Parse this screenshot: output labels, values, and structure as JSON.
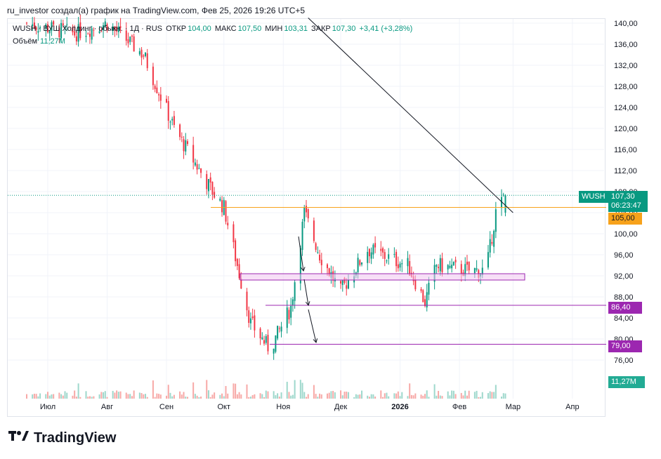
{
  "caption": "ru_investor создал(а) график на TradingView.com, Фев 25, 2026 19:26 UTC+5",
  "legend": {
    "symbol_line": "WUSH · ВУШ Холдинг · обыкн. · 1Д · RUS",
    "open_label": "ОТКР",
    "open": "104,00",
    "high_label": "МАКС",
    "high": "107,50",
    "low_label": "МИН",
    "low": "103,31",
    "close_label": "ЗАКР",
    "close": "107,30",
    "change": "+3,41 (+3,28%)",
    "volume_label": "Объём",
    "volume": "11,27M"
  },
  "tags": {
    "symbol": "WUSH",
    "last_price": "107,30",
    "countdown": "06:23:47",
    "level_orange": "105,00",
    "level_purple_1": "86,40",
    "level_purple_2": "79,00",
    "volume": "11,27M"
  },
  "footer": {
    "brand": "TradingView"
  },
  "colors": {
    "up": "#089981",
    "down": "#f23645",
    "orange": "#f7a21b",
    "purple": "#9c27b0",
    "zone": "#f3c6f1"
  },
  "chart_data": {
    "type": "candlestick",
    "symbol": "WUSH",
    "timeframe": "1D",
    "y_axis_ticks": [
      "140,00",
      "136,00",
      "132,00",
      "128,00",
      "124,00",
      "120,00",
      "116,00",
      "112,00",
      "108,00",
      "104,00",
      "100,00",
      "96,00",
      "92,00",
      "88,00",
      "84,00",
      "80,00",
      "76,00"
    ],
    "x_axis_ticks": [
      "Июл",
      "Авг",
      "Сен",
      "Окт",
      "Ноя",
      "Дек",
      "2026",
      "Фев",
      "Мар",
      "Апр"
    ],
    "ylim": [
      73,
      141
    ],
    "horizontal_levels": [
      105.0,
      86.4,
      79.0
    ],
    "support_zone": [
      91.2,
      92.4
    ],
    "downtrend_line": [
      {
        "date": "2025-11-14",
        "price": 141
      },
      {
        "date": "2026-03-01",
        "price": 104
      }
    ],
    "ohlc_anchors": [
      {
        "date": "2025-06-20",
        "close": 140
      },
      {
        "date": "2025-07-15",
        "close": 138
      },
      {
        "date": "2025-08-01",
        "close": 140
      },
      {
        "date": "2025-08-20",
        "close": 134
      },
      {
        "date": "2025-09-05",
        "close": 120
      },
      {
        "date": "2025-09-25",
        "close": 108
      },
      {
        "date": "2025-10-01",
        "close": 105
      },
      {
        "date": "2025-10-15",
        "close": 83
      },
      {
        "date": "2025-10-25",
        "close": 78
      },
      {
        "date": "2025-11-05",
        "close": 86
      },
      {
        "date": "2025-11-12",
        "close": 104
      },
      {
        "date": "2025-11-20",
        "close": 96
      },
      {
        "date": "2025-12-01",
        "close": 89
      },
      {
        "date": "2025-12-15",
        "close": 97
      },
      {
        "date": "2026-01-05",
        "close": 94
      },
      {
        "date": "2026-01-14",
        "close": 87
      },
      {
        "date": "2026-01-20",
        "close": 94
      },
      {
        "date": "2026-02-05",
        "close": 93
      },
      {
        "date": "2026-02-15",
        "close": 93
      },
      {
        "date": "2026-02-20",
        "close": 104
      },
      {
        "date": "2026-02-25",
        "close": 107.3
      }
    ],
    "last": {
      "open": 104.0,
      "high": 107.5,
      "low": 103.31,
      "close": 107.3,
      "change": 3.41,
      "change_pct": 3.28,
      "volume_m": 11.27
    }
  }
}
